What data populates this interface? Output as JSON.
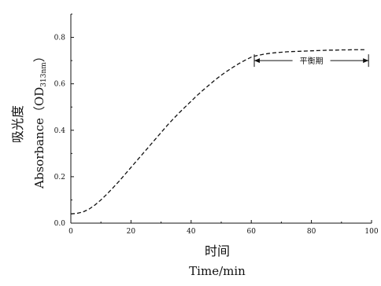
{
  "chart_data": {
    "type": "line",
    "title": "",
    "xlabel_cn": "时间",
    "xlabel_en": "Time/min",
    "ylabel_cn": "吸光度",
    "ylabel_en_main": "Absorbance（OD",
    "ylabel_en_sub": "313nm",
    "ylabel_en_close": "）",
    "xlim": [
      0,
      100
    ],
    "ylim": [
      0.0,
      0.9
    ],
    "x_ticks": [
      "0",
      "20",
      "40",
      "60",
      "80",
      "100"
    ],
    "y_ticks": [
      "0.0",
      "0.2",
      "0.4",
      "0.6",
      "0.8"
    ],
    "grid": false,
    "series": [
      {
        "line_style": "dashed",
        "color": "#111111",
        "x": [
          0,
          2,
          4,
          6,
          8,
          10,
          12,
          14,
          16,
          18,
          20,
          22,
          24,
          26,
          28,
          30,
          32,
          34,
          36,
          38,
          40,
          42,
          44,
          46,
          48,
          50,
          52,
          54,
          56,
          58,
          60,
          62,
          64,
          66,
          68,
          70,
          72,
          74,
          76,
          78,
          80,
          82,
          84,
          86,
          88,
          90,
          92,
          94,
          96,
          98
        ],
        "y": [
          0.04,
          0.042,
          0.048,
          0.06,
          0.078,
          0.1,
          0.125,
          0.152,
          0.18,
          0.21,
          0.24,
          0.27,
          0.3,
          0.33,
          0.36,
          0.39,
          0.42,
          0.448,
          0.475,
          0.5,
          0.525,
          0.55,
          0.573,
          0.595,
          0.617,
          0.637,
          0.655,
          0.672,
          0.688,
          0.702,
          0.715,
          0.722,
          0.727,
          0.731,
          0.734,
          0.736,
          0.738,
          0.739,
          0.74,
          0.741,
          0.742,
          0.743,
          0.744,
          0.745,
          0.745,
          0.746,
          0.746,
          0.747,
          0.747,
          0.747
        ]
      }
    ],
    "annotation": {
      "text": "平衡期",
      "x_start": 61,
      "x_end": 99,
      "y": 0.7
    }
  }
}
